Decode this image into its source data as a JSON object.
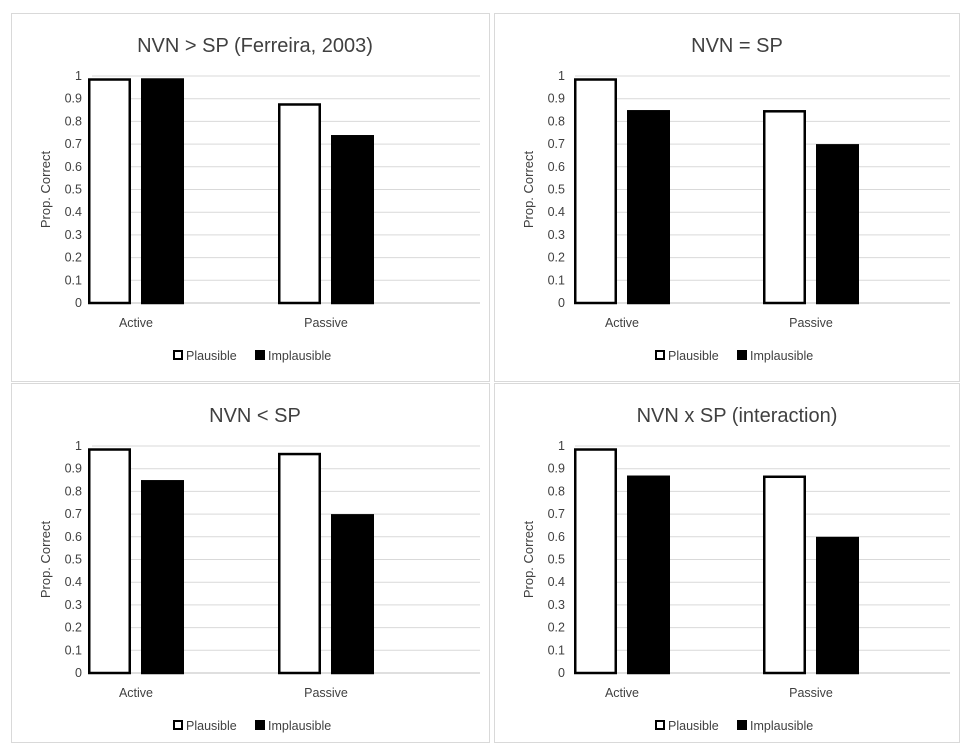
{
  "chart_data": [
    {
      "type": "bar",
      "title": "NVN > SP (Ferreira, 2003)",
      "ylabel": "Prop. Correct",
      "xlabel": "",
      "ylim": [
        0,
        1
      ],
      "yticks": [
        "0",
        "0.1",
        "0.2",
        "0.3",
        "0.4",
        "0.5",
        "0.6",
        "0.7",
        "0.8",
        "0.9",
        "1"
      ],
      "grid": true,
      "legend": "bottom",
      "categories": [
        "Active",
        "Passive"
      ],
      "series": [
        {
          "name": "Plausible",
          "color": "#ffffff",
          "values": [
            0.99,
            0.88
          ]
        },
        {
          "name": "Implausible",
          "color": "#000000",
          "values": [
            0.99,
            0.74
          ]
        }
      ]
    },
    {
      "type": "bar",
      "title": "NVN = SP",
      "ylabel": "Prop. Correct",
      "xlabel": "",
      "ylim": [
        0,
        1
      ],
      "yticks": [
        "0",
        "0.1",
        "0.2",
        "0.3",
        "0.4",
        "0.5",
        "0.6",
        "0.7",
        "0.8",
        "0.9",
        "1"
      ],
      "grid": true,
      "legend": "bottom",
      "categories": [
        "Active",
        "Passive"
      ],
      "series": [
        {
          "name": "Plausible",
          "color": "#ffffff",
          "values": [
            0.99,
            0.85
          ]
        },
        {
          "name": "Implausible",
          "color": "#000000",
          "values": [
            0.85,
            0.7
          ]
        }
      ]
    },
    {
      "type": "bar",
      "title": "NVN < SP",
      "ylabel": "Prop. Correct",
      "xlabel": "",
      "ylim": [
        0,
        1
      ],
      "yticks": [
        "0",
        "0.1",
        "0.2",
        "0.3",
        "0.4",
        "0.5",
        "0.6",
        "0.7",
        "0.8",
        "0.9",
        "1"
      ],
      "grid": true,
      "legend": "bottom",
      "categories": [
        "Active",
        "Passive"
      ],
      "series": [
        {
          "name": "Plausible",
          "color": "#ffffff",
          "values": [
            0.99,
            0.97
          ]
        },
        {
          "name": "Implausible",
          "color": "#000000",
          "values": [
            0.85,
            0.7
          ]
        }
      ]
    },
    {
      "type": "bar",
      "title": "NVN x SP (interaction)",
      "ylabel": "Prop. Correct",
      "xlabel": "",
      "ylim": [
        0,
        1
      ],
      "yticks": [
        "0",
        "0.1",
        "0.2",
        "0.3",
        "0.4",
        "0.5",
        "0.6",
        "0.7",
        "0.8",
        "0.9",
        "1"
      ],
      "grid": true,
      "legend": "bottom",
      "categories": [
        "Active",
        "Passive"
      ],
      "series": [
        {
          "name": "Plausible",
          "color": "#ffffff",
          "values": [
            0.99,
            0.87
          ]
        },
        {
          "name": "Implausible",
          "color": "#000000",
          "values": [
            0.87,
            0.6
          ]
        }
      ]
    }
  ]
}
